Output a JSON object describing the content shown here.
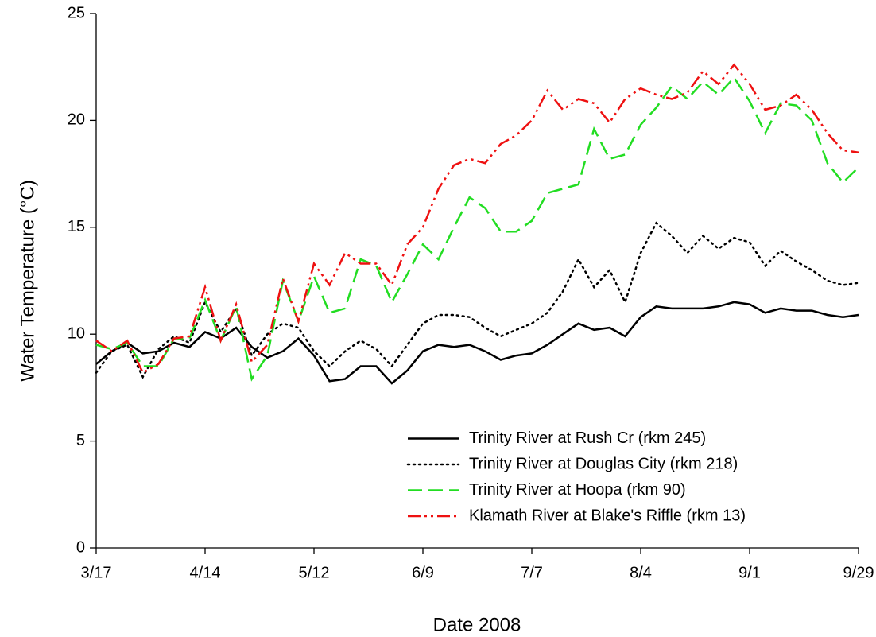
{
  "chart_data": {
    "type": "line",
    "xlabel": "Date 2008",
    "ylabel": "Water Temperature (°C)",
    "x": [
      "3/17",
      "3/21",
      "3/25",
      "3/29",
      "4/2",
      "4/6",
      "4/10",
      "4/14",
      "4/18",
      "4/22",
      "4/26",
      "4/30",
      "5/4",
      "5/8",
      "5/12",
      "5/16",
      "5/20",
      "5/24",
      "5/28",
      "6/1",
      "6/5",
      "6/9",
      "6/13",
      "6/17",
      "6/21",
      "6/25",
      "6/29",
      "7/3",
      "7/7",
      "7/11",
      "7/15",
      "7/19",
      "7/23",
      "7/27",
      "7/31",
      "8/4",
      "8/8",
      "8/12",
      "8/16",
      "8/20",
      "8/24",
      "8/28",
      "9/1",
      "9/5",
      "9/9",
      "9/13",
      "9/17",
      "9/21",
      "9/25",
      "9/29"
    ],
    "xlim": [
      "3/17",
      "9/29"
    ],
    "xticks": [
      "3/17",
      "4/14",
      "5/12",
      "6/9",
      "7/7",
      "8/4",
      "9/1",
      "9/29"
    ],
    "ylim": [
      0,
      25
    ],
    "yticks": [
      0,
      5,
      10,
      15,
      20,
      25
    ],
    "legend": "lower right",
    "series": [
      {
        "name": "Trinity River at Rush Cr (rkm 245)",
        "color": "#000000",
        "style": "solid",
        "values": [
          8.6,
          9.2,
          9.6,
          9.1,
          9.2,
          9.6,
          9.4,
          10.1,
          9.8,
          10.3,
          9.4,
          8.9,
          9.2,
          9.8,
          9.0,
          7.8,
          7.9,
          8.5,
          8.5,
          7.7,
          8.3,
          9.2,
          9.5,
          9.4,
          9.5,
          9.2,
          8.8,
          9.0,
          9.1,
          9.5,
          10.0,
          10.5,
          10.2,
          10.3,
          9.9,
          10.8,
          11.3,
          11.2,
          11.2,
          11.2,
          11.3,
          11.5,
          11.4,
          11.0,
          11.2,
          11.1,
          11.1,
          10.9,
          10.8,
          10.9
        ]
      },
      {
        "name": "Trinity River at Douglas City (rkm 218)",
        "color": "#000000",
        "style": "dotted",
        "values": [
          8.2,
          9.2,
          9.5,
          8.0,
          9.3,
          9.9,
          9.6,
          11.5,
          10.1,
          11.2,
          9.0,
          10.0,
          10.5,
          10.3,
          9.2,
          8.5,
          9.2,
          9.7,
          9.3,
          8.5,
          9.5,
          10.5,
          10.9,
          10.9,
          10.8,
          10.3,
          9.9,
          10.2,
          10.5,
          11.0,
          12.0,
          13.5,
          12.2,
          13.0,
          11.5,
          13.8,
          15.2,
          14.6,
          13.8,
          14.6,
          14.0,
          14.5,
          14.3,
          13.2,
          13.9,
          13.4,
          13.0,
          12.5,
          12.3,
          12.4
        ]
      },
      {
        "name": "Trinity River at Hoopa (rkm 90)",
        "color": "#22dd22",
        "style": "dashed",
        "values": [
          9.5,
          9.3,
          9.6,
          8.5,
          8.5,
          9.8,
          9.8,
          11.6,
          9.7,
          11.3,
          7.9,
          9.0,
          12.5,
          10.6,
          12.7,
          11.0,
          11.2,
          13.5,
          13.2,
          11.5,
          12.8,
          14.2,
          13.5,
          15.0,
          16.4,
          15.9,
          14.8,
          14.8,
          15.3,
          16.6,
          16.8,
          17.0,
          19.6,
          18.2,
          18.4,
          19.8,
          20.6,
          21.6,
          21.0,
          21.8,
          21.2,
          22.0,
          20.9,
          19.4,
          20.8,
          20.7,
          20.0,
          18.0,
          17.1,
          17.8
        ]
      },
      {
        "name": "Klamath River at Blake's Riffle (rkm 13)",
        "color": "#ee1111",
        "style": "dashdotdot",
        "values": [
          9.7,
          9.2,
          9.7,
          8.2,
          8.6,
          9.8,
          9.9,
          12.2,
          9.7,
          11.4,
          8.7,
          9.5,
          12.6,
          10.6,
          13.3,
          12.3,
          13.8,
          13.3,
          13.3,
          12.3,
          14.2,
          15.0,
          16.8,
          17.9,
          18.2,
          18.0,
          18.9,
          19.3,
          20.0,
          21.4,
          20.5,
          21.0,
          20.8,
          19.9,
          21.0,
          21.5,
          21.2,
          21.0,
          21.3,
          22.3,
          21.7,
          22.6,
          21.7,
          20.5,
          20.7,
          21.2,
          20.5,
          19.4,
          18.6,
          18.5
        ]
      }
    ]
  }
}
